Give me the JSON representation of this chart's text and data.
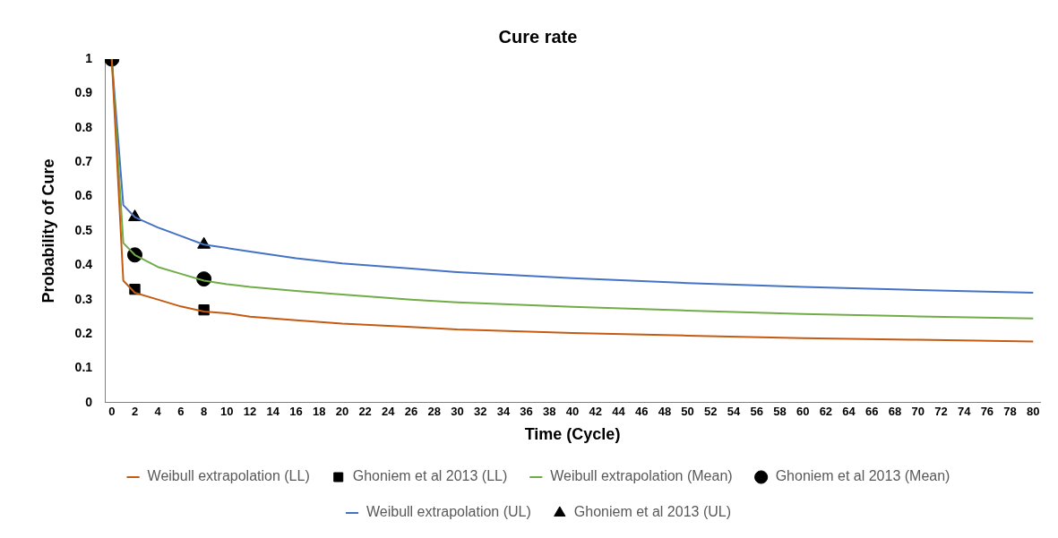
{
  "chart_data": {
    "type": "line",
    "title": "Cure rate",
    "xlabel": "Time (Cycle)",
    "ylabel": "Probability of Cure",
    "xlim": [
      -0.6,
      80.6
    ],
    "xticks": [
      0,
      2,
      4,
      6,
      8,
      10,
      12,
      14,
      16,
      18,
      20,
      22,
      24,
      26,
      28,
      30,
      32,
      34,
      36,
      38,
      40,
      42,
      44,
      46,
      48,
      50,
      52,
      54,
      56,
      58,
      60,
      62,
      64,
      66,
      68,
      70,
      72,
      74,
      76,
      78,
      80
    ],
    "ylim": [
      0,
      1
    ],
    "yticks": [
      0,
      0.1,
      0.2,
      0.3,
      0.4,
      0.5,
      0.6,
      0.7,
      0.8,
      0.9,
      1
    ],
    "grid": false,
    "legend": "bottom",
    "series": [
      {
        "name": "Weibull extrapolation (LL)",
        "type": "line",
        "marker": "none",
        "color": "#c55a11",
        "x": [
          0,
          1,
          2,
          4,
          6,
          8,
          10,
          12,
          16,
          20,
          26,
          30,
          40,
          50,
          60,
          70,
          80
        ],
        "values": [
          1,
          0.355,
          0.32,
          0.3,
          0.28,
          0.265,
          0.26,
          0.25,
          0.24,
          0.23,
          0.22,
          0.213,
          0.203,
          0.195,
          0.188,
          0.183,
          0.178
        ]
      },
      {
        "name": "Ghoniem et al 2013 (LL)",
        "type": "scatter",
        "marker": "square",
        "color": "#000000",
        "x": [
          2,
          8
        ],
        "values": [
          0.33,
          0.27
        ]
      },
      {
        "name": "Weibull extrapolation (Mean)",
        "type": "line",
        "marker": "none",
        "color": "#70ad47",
        "x": [
          0,
          1,
          2,
          4,
          6,
          8,
          10,
          12,
          16,
          20,
          26,
          30,
          40,
          50,
          60,
          70,
          80
        ],
        "values": [
          1,
          0.465,
          0.43,
          0.395,
          0.375,
          0.355,
          0.345,
          0.337,
          0.325,
          0.315,
          0.3,
          0.292,
          0.279,
          0.268,
          0.258,
          0.251,
          0.245
        ]
      },
      {
        "name": "Ghoniem et al 2013 (Mean)",
        "type": "scatter",
        "marker": "circle",
        "color": "#000000",
        "x": [
          0,
          2,
          8
        ],
        "values": [
          1,
          0.43,
          0.36
        ]
      },
      {
        "name": "Weibull extrapolation (UL)",
        "type": "line",
        "marker": "none",
        "color": "#4472c4",
        "x": [
          0,
          1,
          2,
          4,
          6,
          8,
          10,
          12,
          16,
          20,
          26,
          30,
          40,
          50,
          60,
          70,
          80
        ],
        "values": [
          1,
          0.575,
          0.54,
          0.51,
          0.485,
          0.46,
          0.45,
          0.44,
          0.42,
          0.405,
          0.39,
          0.38,
          0.362,
          0.348,
          0.337,
          0.328,
          0.32
        ]
      },
      {
        "name": "Ghoniem et al 2013 (UL)",
        "type": "scatter",
        "marker": "triangle",
        "color": "#000000",
        "x": [
          2,
          8
        ],
        "values": [
          0.54,
          0.46
        ]
      }
    ]
  }
}
